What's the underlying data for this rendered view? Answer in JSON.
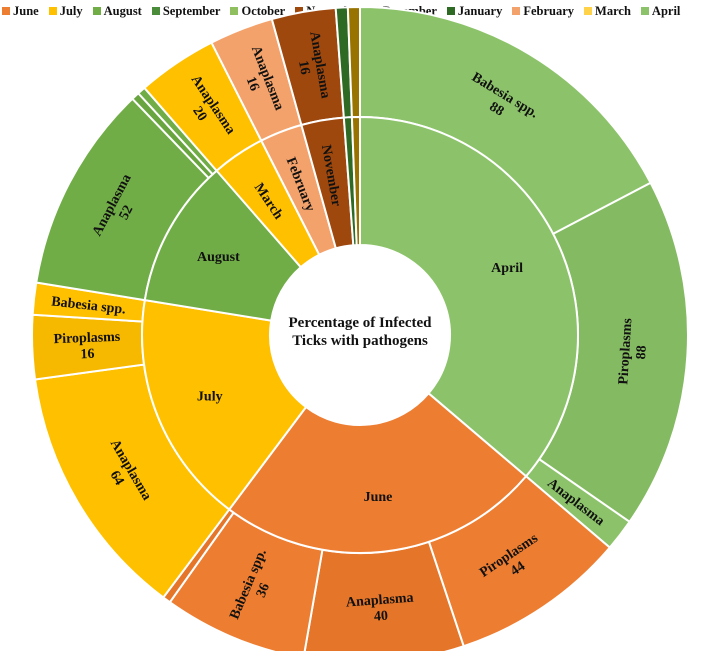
{
  "chart_data": {
    "type": "sunburst",
    "title": "Percentage of Infected Ticks with pathogens",
    "legend": [
      {
        "label": "June",
        "color": "#ED7D31"
      },
      {
        "label": "July",
        "color": "#FFC000"
      },
      {
        "label": "August",
        "color": "#70AD47"
      },
      {
        "label": "September",
        "color": "#4A8C3A"
      },
      {
        "label": "October",
        "color": "#8FBF5E"
      },
      {
        "label": "November",
        "color": "#9E480E"
      },
      {
        "label": "December",
        "color": "#997300"
      },
      {
        "label": "January",
        "color": "#2F6A25"
      },
      {
        "label": "February",
        "color": "#F4A26B"
      },
      {
        "label": "March",
        "color": "#FFD24A"
      },
      {
        "label": "April",
        "color": "#8CC36A"
      }
    ],
    "months": [
      {
        "label": "April",
        "color": "#8CC36A",
        "children": [
          {
            "label": "Babesia spp.",
            "value": 88,
            "show_value": true
          },
          {
            "label": "Piroplasms",
            "value": 88,
            "show_value": true
          },
          {
            "label": "Anaplasma",
            "value": 8,
            "show_value": false
          }
        ]
      },
      {
        "label": "June",
        "color": "#ED7D31",
        "children": [
          {
            "label": "Piroplasms",
            "value": 44,
            "show_value": true
          },
          {
            "label": "Anaplasma",
            "value": 40,
            "show_value": true
          },
          {
            "label": "Babesia spp.",
            "value": 36,
            "show_value": true
          },
          {
            "label": "",
            "value": 2,
            "show_value": false
          }
        ]
      },
      {
        "label": "July",
        "color": "#FFC000",
        "children": [
          {
            "label": "Anaplasma",
            "value": 64,
            "show_value": true
          },
          {
            "label": "Piroplasms",
            "value": 16,
            "show_value": true
          },
          {
            "label": "Babesia spp.",
            "value": 8,
            "show_value": false
          }
        ]
      },
      {
        "label": "August",
        "color": "#70AD47",
        "children": [
          {
            "label": "Anaplasma",
            "value": 52,
            "show_value": true
          },
          {
            "label": "",
            "value": 2,
            "show_value": false
          },
          {
            "label": "",
            "value": 2,
            "show_value": false
          }
        ]
      },
      {
        "label": "March",
        "color": "#FFC000",
        "children": [
          {
            "label": "Anaplasma",
            "value": 20,
            "show_value": true
          }
        ]
      },
      {
        "label": "February",
        "color": "#F4A26B",
        "children": [
          {
            "label": "Anaplasma",
            "value": 16,
            "show_value": true
          }
        ]
      },
      {
        "label": "November",
        "color": "#9E480E",
        "children": [
          {
            "label": "Anaplasma",
            "value": 16,
            "show_value": true
          }
        ]
      },
      {
        "label": "",
        "color": "#2F6A25",
        "children": [
          {
            "label": "",
            "value": 3,
            "show_value": false
          }
        ]
      },
      {
        "label": "",
        "color": "#997300",
        "children": [
          {
            "label": "",
            "value": 3,
            "show_value": false
          }
        ]
      }
    ]
  }
}
